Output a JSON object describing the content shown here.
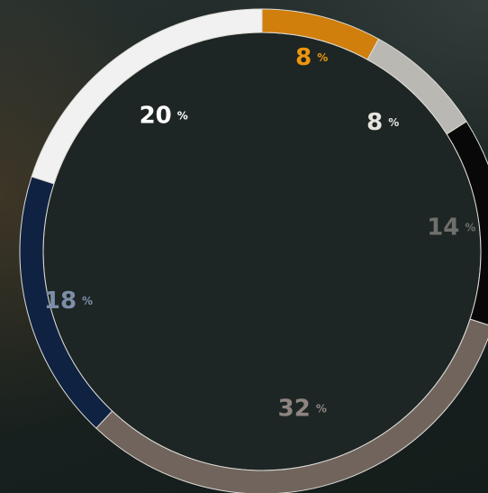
{
  "chart_data": {
    "type": "pie",
    "variant": "donut",
    "unit": "%",
    "series": [
      {
        "value": 8,
        "color": "#d07e0c",
        "label_color": "#ef950f"
      },
      {
        "value": 8,
        "color": "#b9b8b3",
        "label_color": "#e6e4de"
      },
      {
        "value": 14,
        "color": "#070807",
        "label_color": "#6f706c"
      },
      {
        "value": 32,
        "color": "#70645d",
        "label_color": "#8e8580"
      },
      {
        "value": 18,
        "color": "#0f2242",
        "label_color": "#7d8ea9"
      },
      {
        "value": 20,
        "color": "#f1f1f1",
        "label_color": "#ffffff"
      }
    ]
  },
  "colors": {
    "background": "#1a2422",
    "inner_disc": "#1d2624",
    "ring_border": "#dedcd6"
  }
}
